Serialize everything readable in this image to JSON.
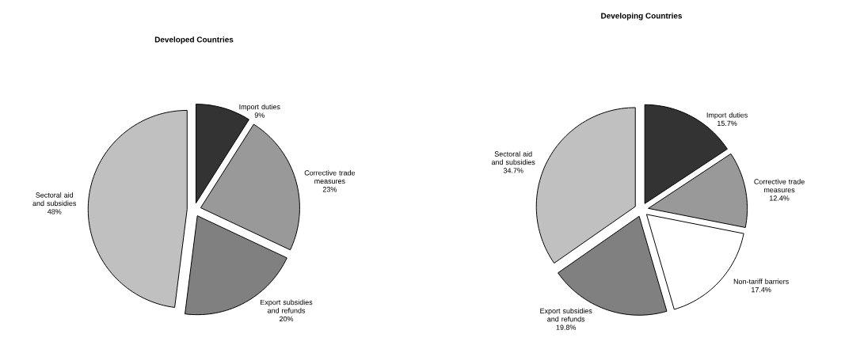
{
  "chart_data": [
    {
      "type": "pie",
      "title": "Developed Countries",
      "categories": [
        "Import duties",
        "Corrective trade measures",
        "Export subsidies and refunds",
        "Sectoral aid and subsidies"
      ],
      "values": [
        9,
        23,
        20,
        48
      ],
      "value_labels": [
        "9%",
        "23%",
        "20%",
        "48%"
      ],
      "colors": [
        "#333333",
        "#999999",
        "#808080",
        "#c0c0c0"
      ]
    },
    {
      "type": "pie",
      "title": "Developing Countries",
      "categories": [
        "Import duties",
        "Corrective trade measures",
        "Non-tariff barriers",
        "Export subsidies and refunds",
        "Sectoral aid and subsidies"
      ],
      "values": [
        15.7,
        12.4,
        17.4,
        19.8,
        34.7
      ],
      "value_labels": [
        "15.7%",
        "12.4%",
        "17.4%",
        "19.8%",
        "34.7%"
      ],
      "colors": [
        "#333333",
        "#999999",
        "#ffffff",
        "#808080",
        "#c0c0c0"
      ]
    }
  ]
}
